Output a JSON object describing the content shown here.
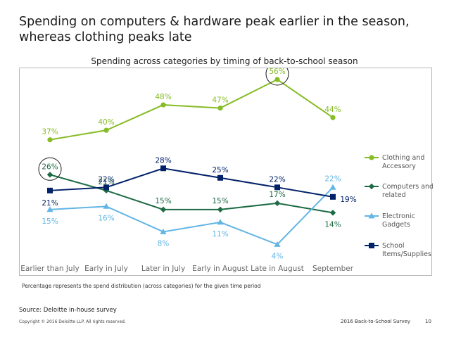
{
  "slide": {
    "title_line1": "Spending on computers & hardware peak earlier in the season,",
    "title_line2": "whereas clothing peaks late"
  },
  "chart_data": {
    "type": "line",
    "title": "Spending across categories by timing of back-to-school season",
    "categories": [
      "Earlier than July",
      "Early in July",
      "Later in July",
      "Early in August",
      "Late in August",
      "September"
    ],
    "series": [
      {
        "name": "Clothing and Accessory",
        "values": [
          37,
          40,
          48,
          47,
          56,
          44
        ],
        "labels": [
          "37%",
          "40%",
          "48%",
          "47%",
          "56%",
          "44%"
        ],
        "color": "#86bc25",
        "marker": "circle"
      },
      {
        "name": "Computers and related",
        "values": [
          26,
          21,
          15,
          15,
          17,
          14
        ],
        "labels": [
          "26%",
          "21%",
          "15%",
          "15%",
          "17%",
          "14%"
        ],
        "color": "#1e6b45",
        "marker": "diamond"
      },
      {
        "name": "Electronic Gadgets",
        "values": [
          15,
          16,
          8,
          11,
          4,
          22
        ],
        "labels": [
          "15%",
          "16%",
          "8%",
          "11%",
          "4%",
          "22%"
        ],
        "color": "#62b5e5",
        "marker": "triangle"
      },
      {
        "name": "School Items/Supplies",
        "values": [
          21,
          22,
          28,
          25,
          22,
          19
        ],
        "labels": [
          "21%",
          "22%",
          "28%",
          "25%",
          "22%",
          "19%"
        ],
        "color": "#012169",
        "marker": "square"
      }
    ],
    "highlighted_points": [
      {
        "series": "Computers and related",
        "category": "Earlier than July"
      },
      {
        "series": "Clothing and Accessory",
        "category": "Late in August"
      }
    ],
    "ylim": [
      0,
      60
    ],
    "grid": false,
    "legend_position": "right",
    "xlabel": "",
    "ylabel": ""
  },
  "footnote": "Percentage represents the spend distribution (across categories) for the given time period",
  "source": "Source: Deloitte in-house survey",
  "copyright": "Copyright © 2016 Deloitte LLP. All rights reserved.",
  "doc_label": "2016 Back-to-School Survey",
  "page_number": "10"
}
